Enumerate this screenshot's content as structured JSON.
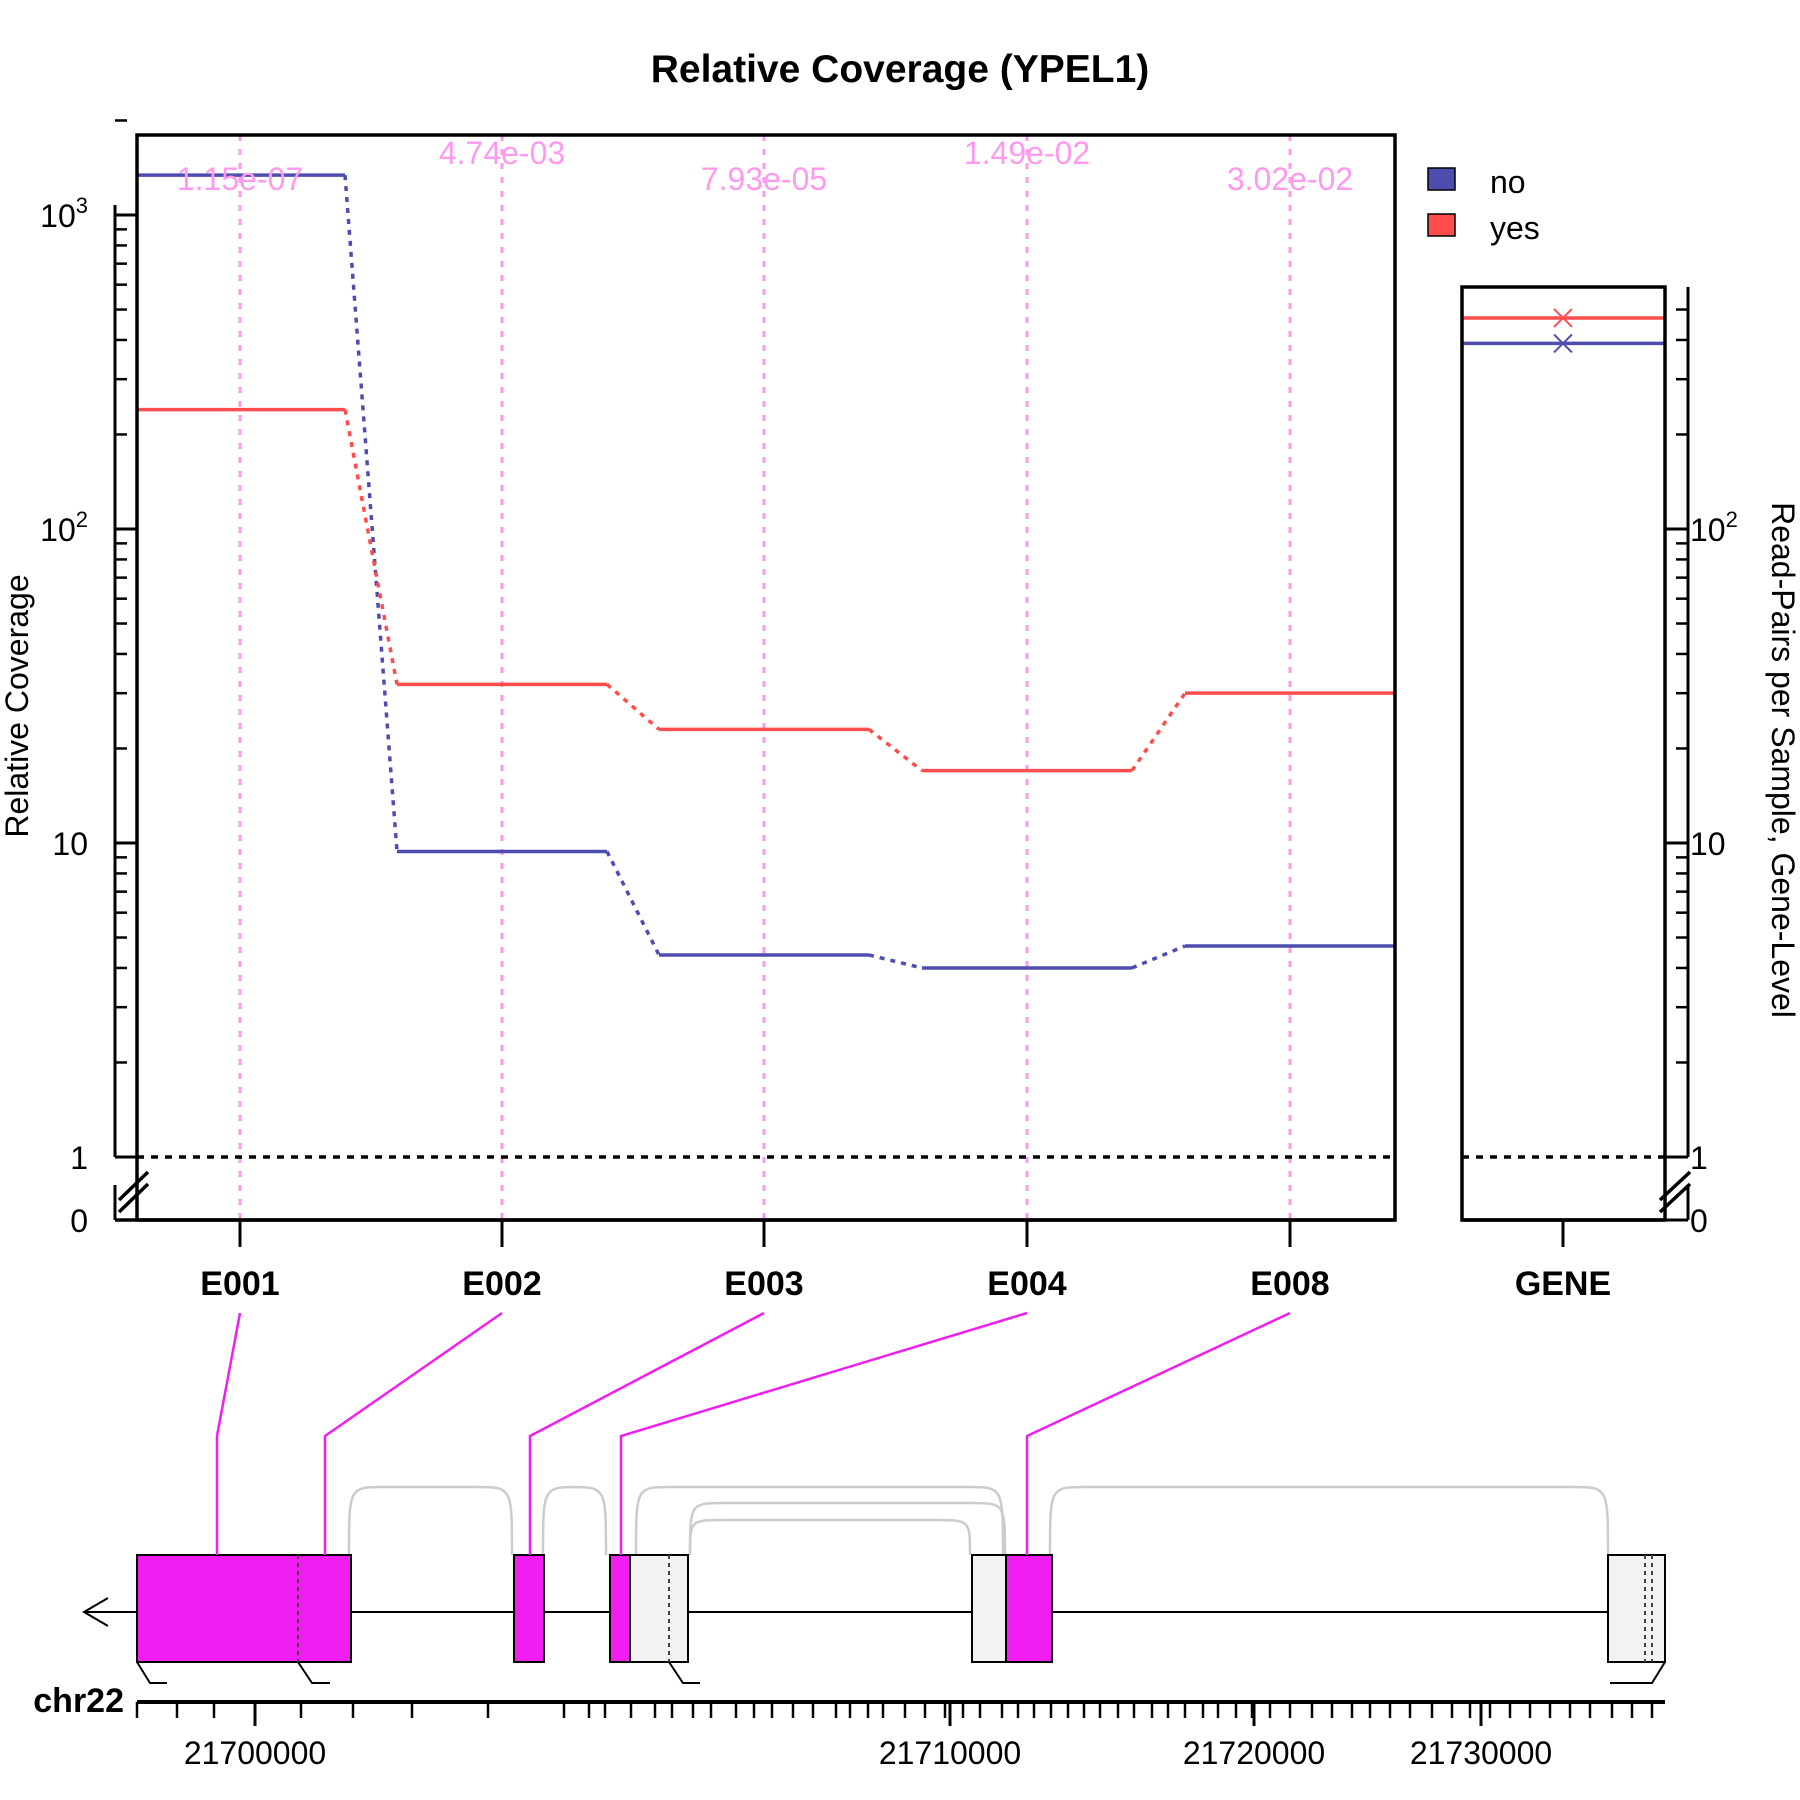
{
  "chart_data": {
    "type": "line",
    "title": "Relative Coverage (YPEL1)",
    "ylabel": "Relative Coverage",
    "ylabel_right": "Read-Pairs per Sample, Gene-Level",
    "y_scale": "log",
    "y_axis_break": true,
    "ylim_main": [
      0.8,
      1900
    ],
    "ylim_gene": [
      0.8,
      620
    ],
    "y_ticks_main": [
      {
        "label": "0",
        "value": 0
      },
      {
        "label": "1",
        "value": 1
      },
      {
        "label": "10",
        "value": 10
      },
      {
        "label": "10",
        "sup": "2",
        "value": 100
      },
      {
        "label": "10",
        "sup": "3",
        "value": 1000
      }
    ],
    "y_ticks_gene": [
      {
        "label": "0",
        "value": 0
      },
      {
        "label": "1",
        "value": 1
      },
      {
        "label": "10",
        "value": 10
      },
      {
        "label": "10",
        "sup": "2",
        "value": 100
      }
    ],
    "categories": [
      "E001",
      "E002",
      "E003",
      "E004",
      "E008"
    ],
    "gene_category": "GENE",
    "pvalues": [
      "1.15e-07",
      "4.74e-03",
      "7.93e-05",
      "1.49e-02",
      "3.02e-02"
    ],
    "reference_line": 1,
    "legend": {
      "position": "top-right"
    },
    "series": [
      {
        "name": "no",
        "color": "#4d4daf",
        "values": [
          1340,
          9.4,
          4.4,
          4.0,
          4.7
        ],
        "gene_value": 390
      },
      {
        "name": "yes",
        "color": "#ff4d4d",
        "values": [
          240,
          32,
          23,
          17,
          30
        ],
        "gene_value": 470
      }
    ]
  },
  "annotation": {
    "chromosome": "chr22",
    "strand": "-",
    "coordinate_ticks": [
      "21700000",
      "21710000",
      "21720000",
      "21730000"
    ],
    "exon_color": "#f01ef0",
    "junction_color": "#cccccc"
  }
}
